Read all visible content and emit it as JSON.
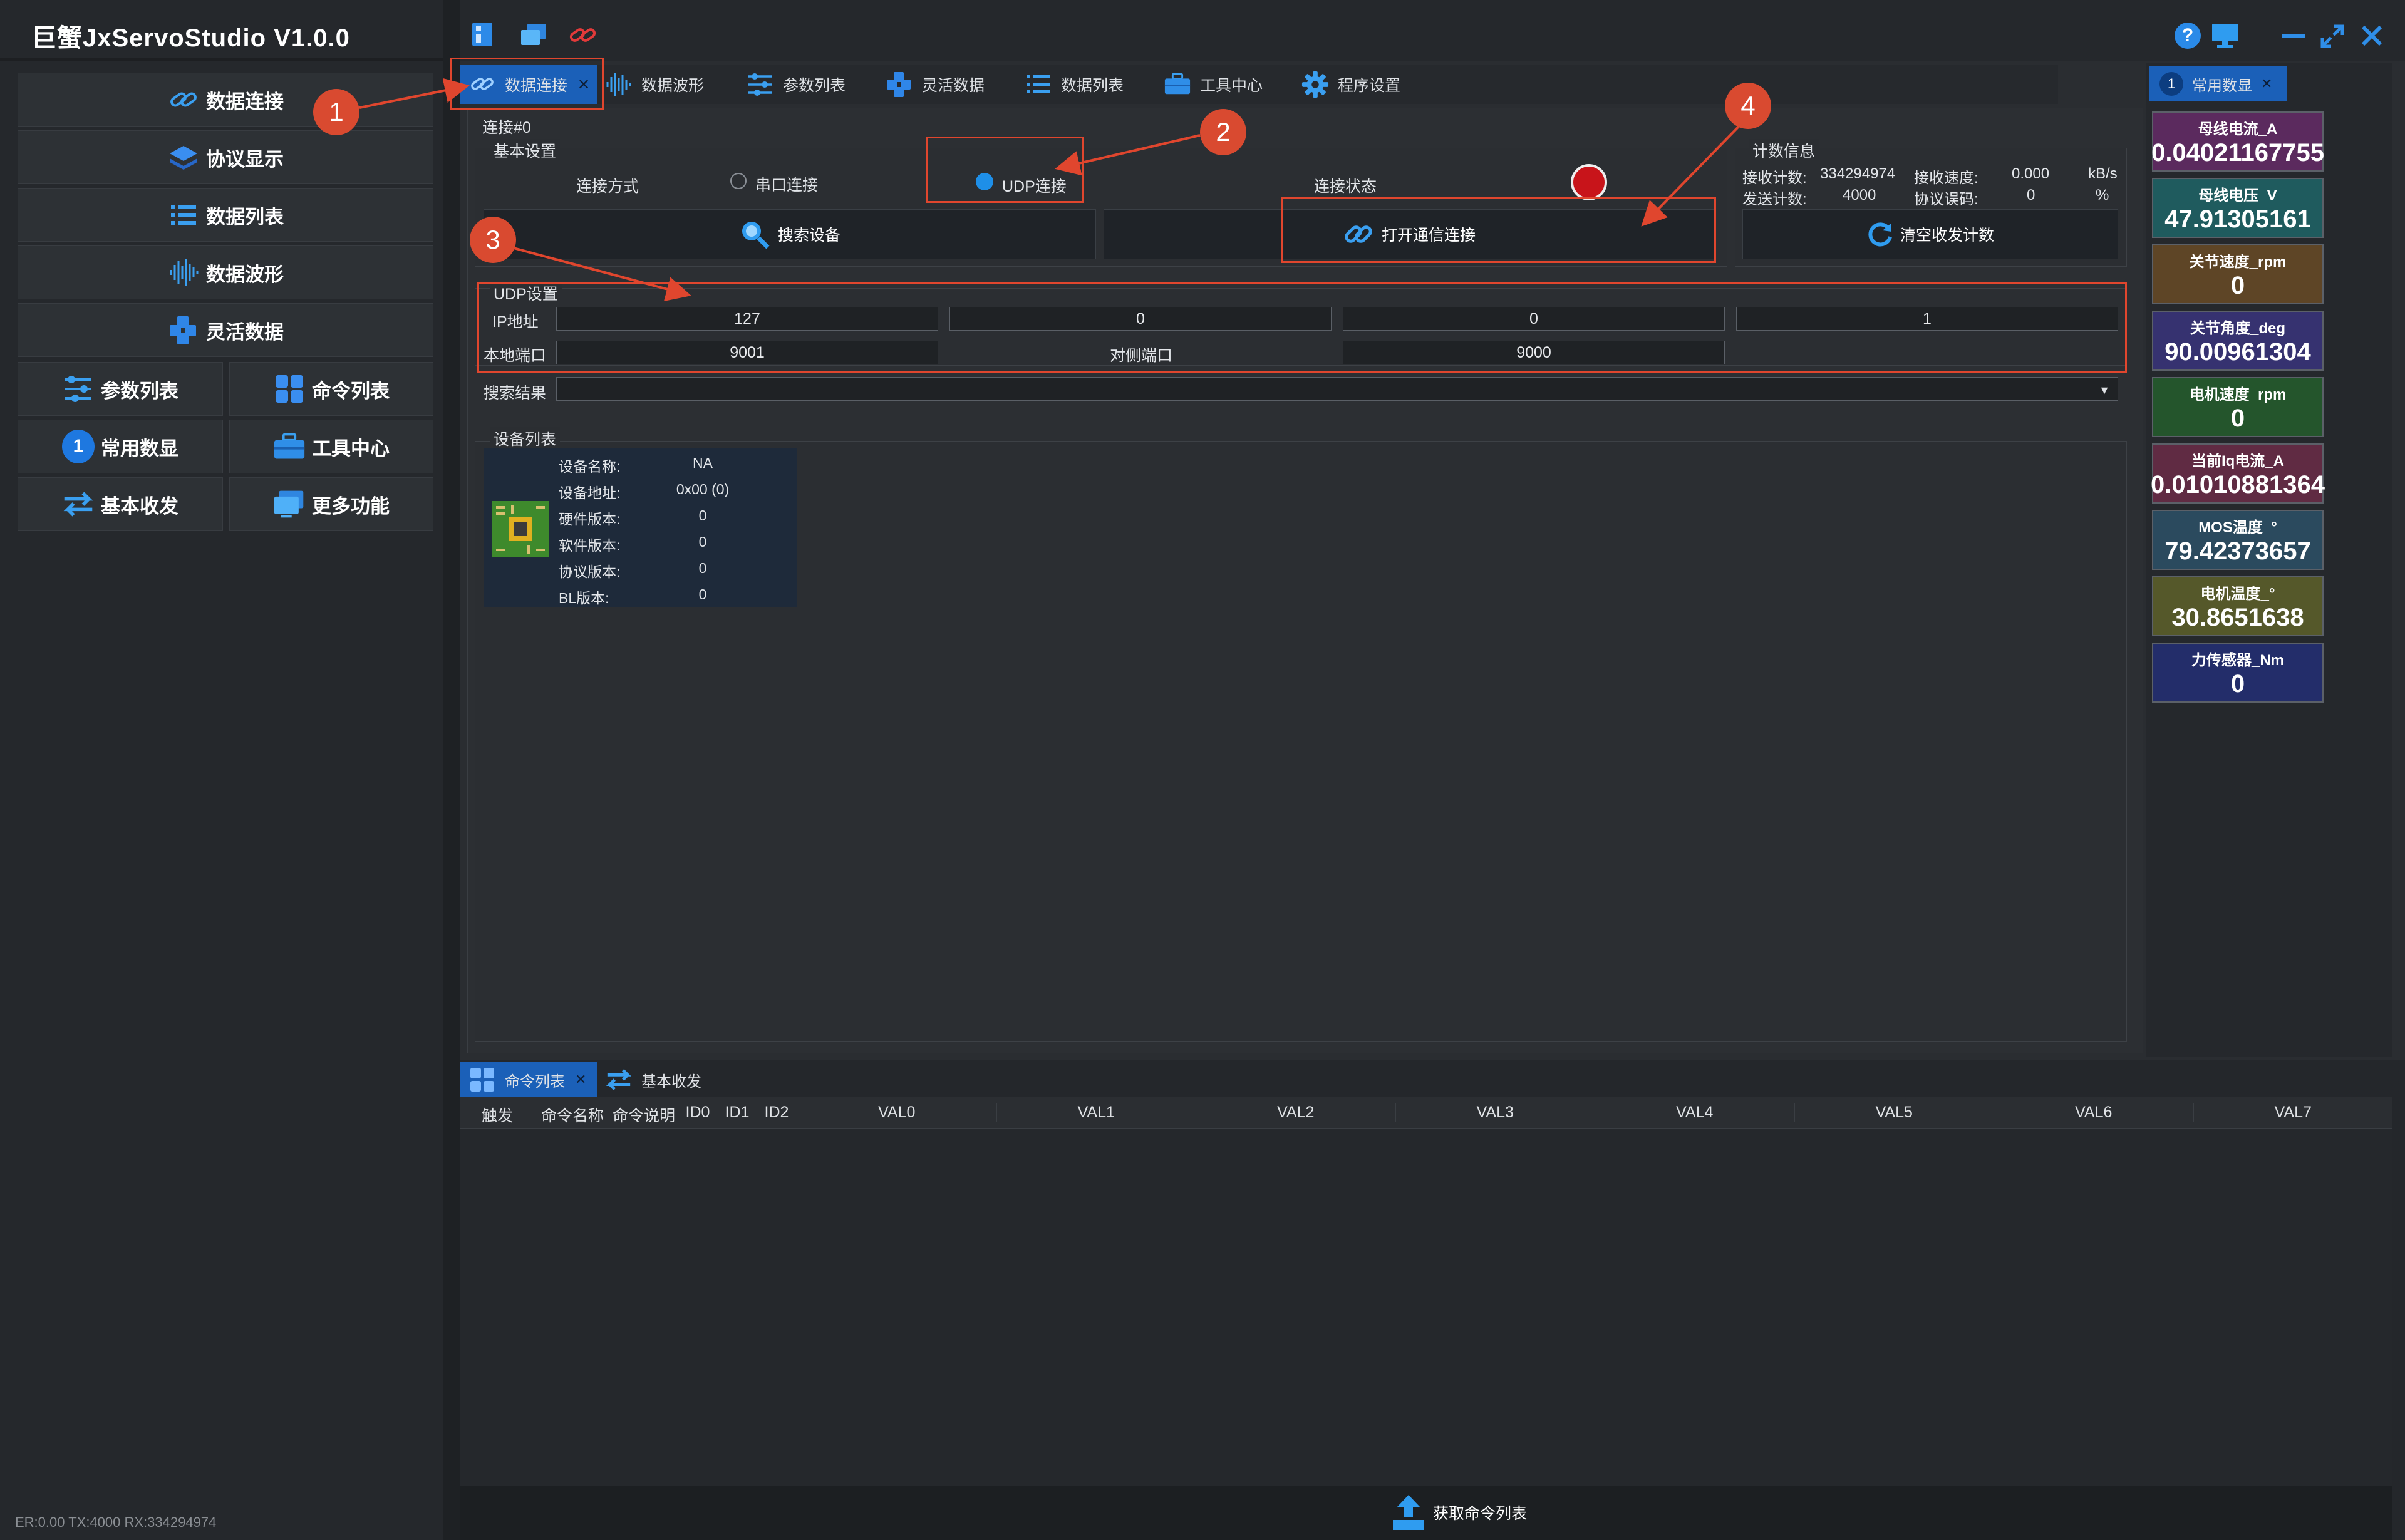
{
  "app": {
    "title": "巨蟹JxServoStudio   V1.0.0"
  },
  "sidebar": {
    "wide_items": [
      {
        "label": "数据连接",
        "icon": "link-icon"
      },
      {
        "label": "协议显示",
        "icon": "layers-icon"
      },
      {
        "label": "数据列表",
        "icon": "list-icon"
      },
      {
        "label": "数据波形",
        "icon": "waveform-icon"
      },
      {
        "label": "灵活数据",
        "icon": "cubes-icon"
      }
    ],
    "grid_items": [
      {
        "label": "参数列表",
        "icon": "sliders-icon"
      },
      {
        "label": "命令列表",
        "icon": "grid-icon"
      },
      {
        "label": "常用数显",
        "icon": "number-one-icon",
        "badge": "1"
      },
      {
        "label": "工具中心",
        "icon": "toolbox-icon"
      },
      {
        "label": "基本收发",
        "icon": "swap-icon"
      },
      {
        "label": "更多功能",
        "icon": "monitor-icon"
      }
    ],
    "status": "ER:0.00 TX:4000 RX:334294974"
  },
  "tabs": [
    {
      "label": "数据连接",
      "icon": "link-icon",
      "active": true,
      "close": "✕"
    },
    {
      "label": "数据波形",
      "icon": "waveform-icon"
    },
    {
      "label": "参数列表",
      "icon": "sliders-icon"
    },
    {
      "label": "灵活数据",
      "icon": "cubes-icon"
    },
    {
      "label": "数据列表",
      "icon": "list-icon"
    },
    {
      "label": "工具中心",
      "icon": "toolbox-icon"
    },
    {
      "label": "程序设置",
      "icon": "gear-icon"
    }
  ],
  "connection": {
    "group_title": "连接#0",
    "basic": {
      "title": "基本设置",
      "mode_label": "连接方式",
      "serial_label": "串口连接",
      "udp_label": "UDP连接",
      "selected": "udp",
      "status_label": "连接状态",
      "search_button": "搜索设备",
      "open_button": "打开通信连接"
    },
    "stats": {
      "title": "计数信息",
      "rx_count_label": "接收计数:",
      "rx_count": "334294974",
      "rx_speed_label": "接收速度:",
      "rx_speed": "0.000",
      "rx_speed_unit": "kB/s",
      "tx_count_label": "发送计数:",
      "tx_count": "4000",
      "err_label": "协议误码:",
      "err": "0",
      "err_unit": "%",
      "clear_button": "清空收发计数"
    },
    "udp": {
      "title": "UDP设置",
      "ip_label": "IP地址",
      "ip": [
        "127",
        "0",
        "0",
        "1"
      ],
      "local_port_label": "本地端口",
      "local_port": "9001",
      "remote_port_label": "对侧端口",
      "remote_port": "9000"
    },
    "search_result_label": "搜索结果",
    "devices": {
      "title": "设备列表",
      "fields": [
        {
          "label": "设备名称:",
          "value": "NA"
        },
        {
          "label": "设备地址:",
          "value": "0x00 (0)"
        },
        {
          "label": "硬件版本:",
          "value": "0"
        },
        {
          "label": "软件版本:",
          "value": "0"
        },
        {
          "label": "协议版本:",
          "value": "0"
        },
        {
          "label": "BL版本:",
          "value": "0"
        }
      ]
    }
  },
  "callouts": [
    "1",
    "2",
    "3",
    "4"
  ],
  "bottom": {
    "tabs": [
      {
        "label": "命令列表",
        "icon": "grid-icon",
        "active": true,
        "close": "✕"
      },
      {
        "label": "基本收发",
        "icon": "swap-icon"
      }
    ],
    "columns": [
      "触发",
      "命令名称",
      "命令说明",
      "ID0",
      "ID1",
      "ID2",
      "VAL0",
      "VAL1",
      "VAL2",
      "VAL3",
      "VAL4",
      "VAL5",
      "VAL6",
      "VAL7"
    ],
    "get_button": "获取命令列表"
  },
  "right_panel": {
    "tab": {
      "badge": "1",
      "label": "常用数显",
      "close": "✕"
    },
    "cards": [
      {
        "title": "母线电流_A",
        "value": "0.04021167755",
        "color": "#5b2a5e"
      },
      {
        "title": "母线电压_V",
        "value": "47.91305161",
        "color": "#1f5b5e"
      },
      {
        "title": "关节速度_rpm",
        "value": "0",
        "color": "#5e4526"
      },
      {
        "title": "关节角度_deg",
        "value": "90.00961304",
        "color": "#363270"
      },
      {
        "title": "电机速度_rpm",
        "value": "0",
        "color": "#24552c"
      },
      {
        "title": "当前Iq电流_A",
        "value": "0.01010881364",
        "color": "#602b43"
      },
      {
        "title": "MOS温度_°",
        "value": "79.42373657",
        "color": "#2b4a5e"
      },
      {
        "title": "电机温度_°",
        "value": "30.8651638",
        "color": "#55582a"
      },
      {
        "title": "力传感器_Nm",
        "value": "0",
        "color": "#232d6a"
      }
    ]
  },
  "colors": {
    "accent": "#1e8fe8",
    "annotation": "#e0462e",
    "status_red": "#c8141a"
  }
}
